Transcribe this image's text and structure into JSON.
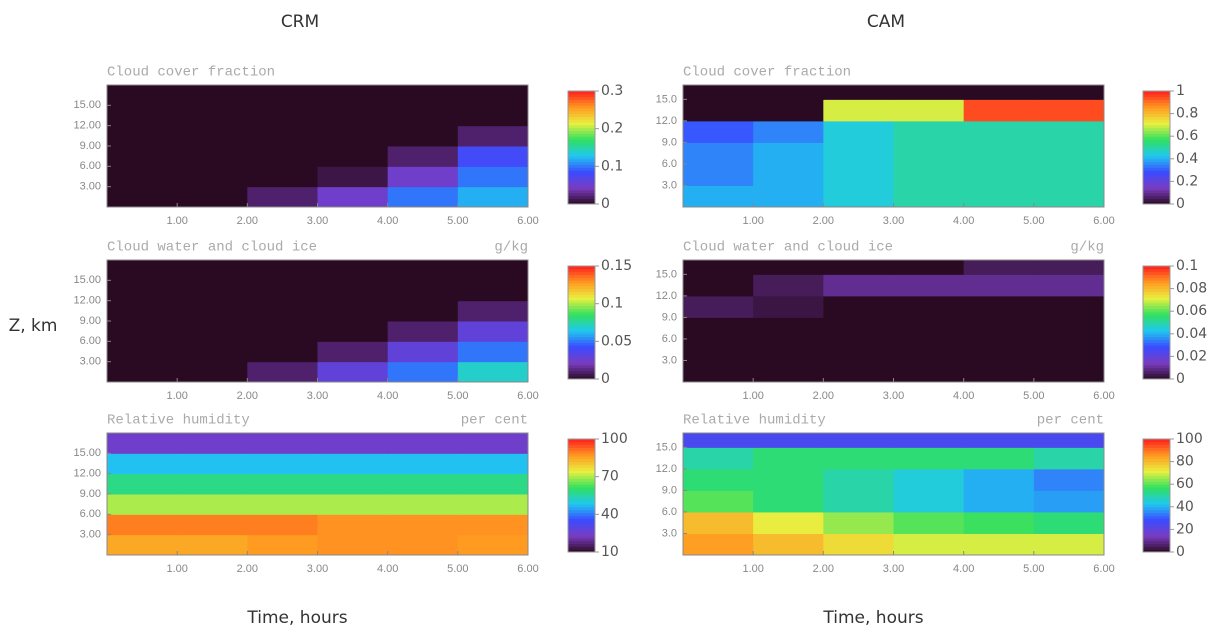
{
  "column_titles": [
    "CRM",
    "CAM"
  ],
  "ylabel": "Z, km",
  "colormap": [
    "#2a0a22",
    "#7a3cc0",
    "#3a4cff",
    "#20c8f0",
    "#30e060",
    "#e8f040",
    "#ff9a20",
    "#ff2020"
  ],
  "chart_data": [
    {
      "type": "heatmap",
      "title": "Cloud cover fraction",
      "x": [
        0.5,
        1.5,
        2.5,
        3.5,
        4.5,
        5.5
      ],
      "y": [
        1.5,
        4.5,
        7.5,
        10.5,
        13.5,
        16.5
      ],
      "z": [
        [
          0,
          0,
          0.02,
          0.05,
          0.1,
          0.12
        ],
        [
          0,
          0,
          0,
          0.01,
          0.05,
          0.1
        ],
        [
          0,
          0,
          0,
          0,
          0.02,
          0.08
        ],
        [
          0,
          0,
          0,
          0,
          0,
          0.02
        ],
        [
          0,
          0,
          0,
          0,
          0,
          0
        ],
        [
          0,
          0,
          0,
          0,
          0,
          0
        ]
      ],
      "xlim": [
        0,
        6
      ],
      "ylim": [
        0,
        18
      ],
      "xticks": [
        {
          "value": 1,
          "label": "1.00"
        },
        {
          "value": 2,
          "label": "2.00"
        },
        {
          "value": 3,
          "label": "3.00"
        },
        {
          "value": 4,
          "label": "4.00"
        },
        {
          "value": 5,
          "label": "5.00"
        },
        {
          "value": 6,
          "label": "6.00"
        }
      ],
      "yticks": [
        {
          "value": 3,
          "label": "3.00"
        },
        {
          "value": 6,
          "label": "6.00"
        },
        {
          "value": 9,
          "label": "9.00"
        },
        {
          "value": 12,
          "label": "12.00"
        },
        {
          "value": 15,
          "label": "15.00"
        }
      ],
      "clim": [
        0,
        0.3
      ],
      "cticks": [
        0,
        0.1,
        0.2,
        0.3
      ]
    },
    {
      "type": "heatmap",
      "title": "Cloud water and cloud ice",
      "units": "g/kg",
      "x": [
        0.5,
        1.5,
        2.5,
        3.5,
        4.5,
        5.5
      ],
      "y": [
        1.5,
        4.5,
        7.5,
        10.5,
        13.5,
        16.5
      ],
      "z": [
        [
          0,
          0,
          0.01,
          0.03,
          0.05,
          0.07
        ],
        [
          0,
          0,
          0,
          0.01,
          0.03,
          0.05
        ],
        [
          0,
          0,
          0,
          0,
          0.01,
          0.03
        ],
        [
          0,
          0,
          0,
          0,
          0,
          0.01
        ],
        [
          0,
          0,
          0,
          0,
          0,
          0
        ],
        [
          0,
          0,
          0,
          0,
          0,
          0
        ]
      ],
      "xlim": [
        0,
        6
      ],
      "ylim": [
        0,
        18
      ],
      "xticks": [
        {
          "value": 1,
          "label": "1.00"
        },
        {
          "value": 2,
          "label": "2.00"
        },
        {
          "value": 3,
          "label": "3.00"
        },
        {
          "value": 4,
          "label": "4.00"
        },
        {
          "value": 5,
          "label": "5.00"
        },
        {
          "value": 6,
          "label": "6.00"
        }
      ],
      "yticks": [
        {
          "value": 3,
          "label": "3.00"
        },
        {
          "value": 6,
          "label": "6.00"
        },
        {
          "value": 9,
          "label": "9.00"
        },
        {
          "value": 12,
          "label": "12.00"
        },
        {
          "value": 15,
          "label": "15.00"
        }
      ],
      "clim": [
        0,
        0.15
      ],
      "cticks": [
        0,
        0.05,
        0.1,
        0.15
      ]
    },
    {
      "type": "heatmap",
      "title": "Relative humidity",
      "units": "per cent",
      "xlabel": "Time, hours",
      "x": [
        0.5,
        1.5,
        2.5,
        3.5,
        4.5,
        5.5
      ],
      "y": [
        1.5,
        4.5,
        7.5,
        10.5,
        13.5,
        16.5
      ],
      "z": [
        [
          85,
          85,
          87,
          88,
          88,
          87
        ],
        [
          90,
          90,
          90,
          88,
          88,
          88
        ],
        [
          70,
          70,
          70,
          70,
          70,
          70
        ],
        [
          58,
          58,
          58,
          58,
          58,
          58
        ],
        [
          48,
          48,
          48,
          48,
          48,
          48
        ],
        [
          25,
          25,
          25,
          25,
          25,
          25
        ]
      ],
      "xlim": [
        0,
        6
      ],
      "ylim": [
        0,
        18
      ],
      "xticks": [
        {
          "value": 1,
          "label": "1.00"
        },
        {
          "value": 2,
          "label": "2.00"
        },
        {
          "value": 3,
          "label": "3.00"
        },
        {
          "value": 4,
          "label": "4.00"
        },
        {
          "value": 5,
          "label": "5.00"
        },
        {
          "value": 6,
          "label": "6.00"
        }
      ],
      "yticks": [
        {
          "value": 3,
          "label": "3.00"
        },
        {
          "value": 6,
          "label": "6.00"
        },
        {
          "value": 9,
          "label": "9.00"
        },
        {
          "value": 12,
          "label": "12.00"
        },
        {
          "value": 15,
          "label": "15.00"
        }
      ],
      "clim": [
        10,
        100
      ],
      "cticks": [
        10,
        40,
        70,
        100
      ]
    },
    {
      "type": "heatmap",
      "title": "Cloud cover fraction",
      "x": [
        0.5,
        1.5,
        2.5,
        3.5,
        4.5,
        5.5
      ],
      "y": [
        1.5,
        4.5,
        7.5,
        10.5,
        13.5,
        16.5
      ],
      "z": [
        [
          0.4,
          0.4,
          0.45,
          0.5,
          0.5,
          0.5
        ],
        [
          0.35,
          0.4,
          0.45,
          0.5,
          0.5,
          0.5
        ],
        [
          0.35,
          0.4,
          0.45,
          0.5,
          0.5,
          0.5
        ],
        [
          0.3,
          0.35,
          0.45,
          0.5,
          0.5,
          0.5
        ],
        [
          0,
          0,
          0.7,
          0.7,
          0.95,
          0.95
        ],
        [
          0,
          0,
          0,
          0,
          0,
          0
        ]
      ],
      "xlim": [
        0,
        6
      ],
      "ylim": [
        0,
        17
      ],
      "xticks": [
        {
          "value": 1,
          "label": "1.00"
        },
        {
          "value": 2,
          "label": "2.00"
        },
        {
          "value": 3,
          "label": "3.00"
        },
        {
          "value": 4,
          "label": "4.00"
        },
        {
          "value": 5,
          "label": "5.00"
        },
        {
          "value": 6,
          "label": "6.00"
        }
      ],
      "yticks": [
        {
          "value": 3,
          "label": "3.0"
        },
        {
          "value": 6,
          "label": "6.0"
        },
        {
          "value": 9,
          "label": "9.0"
        },
        {
          "value": 12,
          "label": "12.0"
        },
        {
          "value": 15,
          "label": "15.0"
        }
      ],
      "clim": [
        0,
        1
      ],
      "cticks": [
        0,
        0.2,
        0.4,
        0.6,
        0.8,
        1
      ]
    },
    {
      "type": "heatmap",
      "title": "Cloud water and cloud ice",
      "units": "g/kg",
      "x": [
        0.5,
        1.5,
        2.5,
        3.5,
        4.5,
        5.5
      ],
      "y": [
        1.5,
        4.5,
        7.5,
        10.5,
        13.5,
        16.5
      ],
      "z": [
        [
          0,
          0,
          0,
          0,
          0,
          0
        ],
        [
          0,
          0,
          0,
          0,
          0,
          0
        ],
        [
          0,
          0,
          0,
          0,
          0,
          0
        ],
        [
          0.005,
          0.003,
          0,
          0,
          0,
          0
        ],
        [
          0,
          0.005,
          0.01,
          0.01,
          0.01,
          0.01
        ],
        [
          0,
          0,
          0,
          0,
          0.005,
          0.005
        ]
      ],
      "xlim": [
        0,
        6
      ],
      "ylim": [
        0,
        17
      ],
      "xticks": [
        {
          "value": 1,
          "label": "1.00"
        },
        {
          "value": 2,
          "label": "2.00"
        },
        {
          "value": 3,
          "label": "3.00"
        },
        {
          "value": 4,
          "label": "4.00"
        },
        {
          "value": 5,
          "label": "5.00"
        },
        {
          "value": 6,
          "label": "6.00"
        }
      ],
      "yticks": [
        {
          "value": 3,
          "label": "3.0"
        },
        {
          "value": 6,
          "label": "6.0"
        },
        {
          "value": 9,
          "label": "9.0"
        },
        {
          "value": 12,
          "label": "12.0"
        },
        {
          "value": 15,
          "label": "15.0"
        }
      ],
      "clim": [
        0,
        0.1
      ],
      "cticks": [
        0,
        0.02,
        0.04,
        0.06,
        0.08,
        0.1
      ]
    },
    {
      "type": "heatmap",
      "title": "Relative humidity",
      "units": "per cent",
      "xlabel": "Time, hours",
      "x": [
        0.5,
        1.5,
        2.5,
        3.5,
        4.5,
        5.5
      ],
      "y": [
        1.5,
        4.5,
        7.5,
        10.5,
        13.5,
        16.5
      ],
      "z": [
        [
          85,
          80,
          75,
          70,
          70,
          70
        ],
        [
          80,
          72,
          65,
          60,
          58,
          55
        ],
        [
          60,
          55,
          50,
          45,
          40,
          38
        ],
        [
          55,
          55,
          50,
          45,
          40,
          35
        ],
        [
          50,
          55,
          55,
          55,
          55,
          50
        ],
        [
          25,
          25,
          25,
          25,
          25,
          25
        ]
      ],
      "xlim": [
        0,
        6
      ],
      "ylim": [
        0,
        17
      ],
      "xticks": [
        {
          "value": 1,
          "label": "1.00"
        },
        {
          "value": 2,
          "label": "2.00"
        },
        {
          "value": 3,
          "label": "3.00"
        },
        {
          "value": 4,
          "label": "4.00"
        },
        {
          "value": 5,
          "label": "5.00"
        },
        {
          "value": 6,
          "label": "6.00"
        }
      ],
      "yticks": [
        {
          "value": 3,
          "label": "3.0"
        },
        {
          "value": 6,
          "label": "6.0"
        },
        {
          "value": 9,
          "label": "9.0"
        },
        {
          "value": 12,
          "label": "12.0"
        },
        {
          "value": 15,
          "label": "15.0"
        }
      ],
      "clim": [
        0,
        100
      ],
      "cticks": [
        0,
        20,
        40,
        60,
        80,
        100
      ]
    }
  ]
}
